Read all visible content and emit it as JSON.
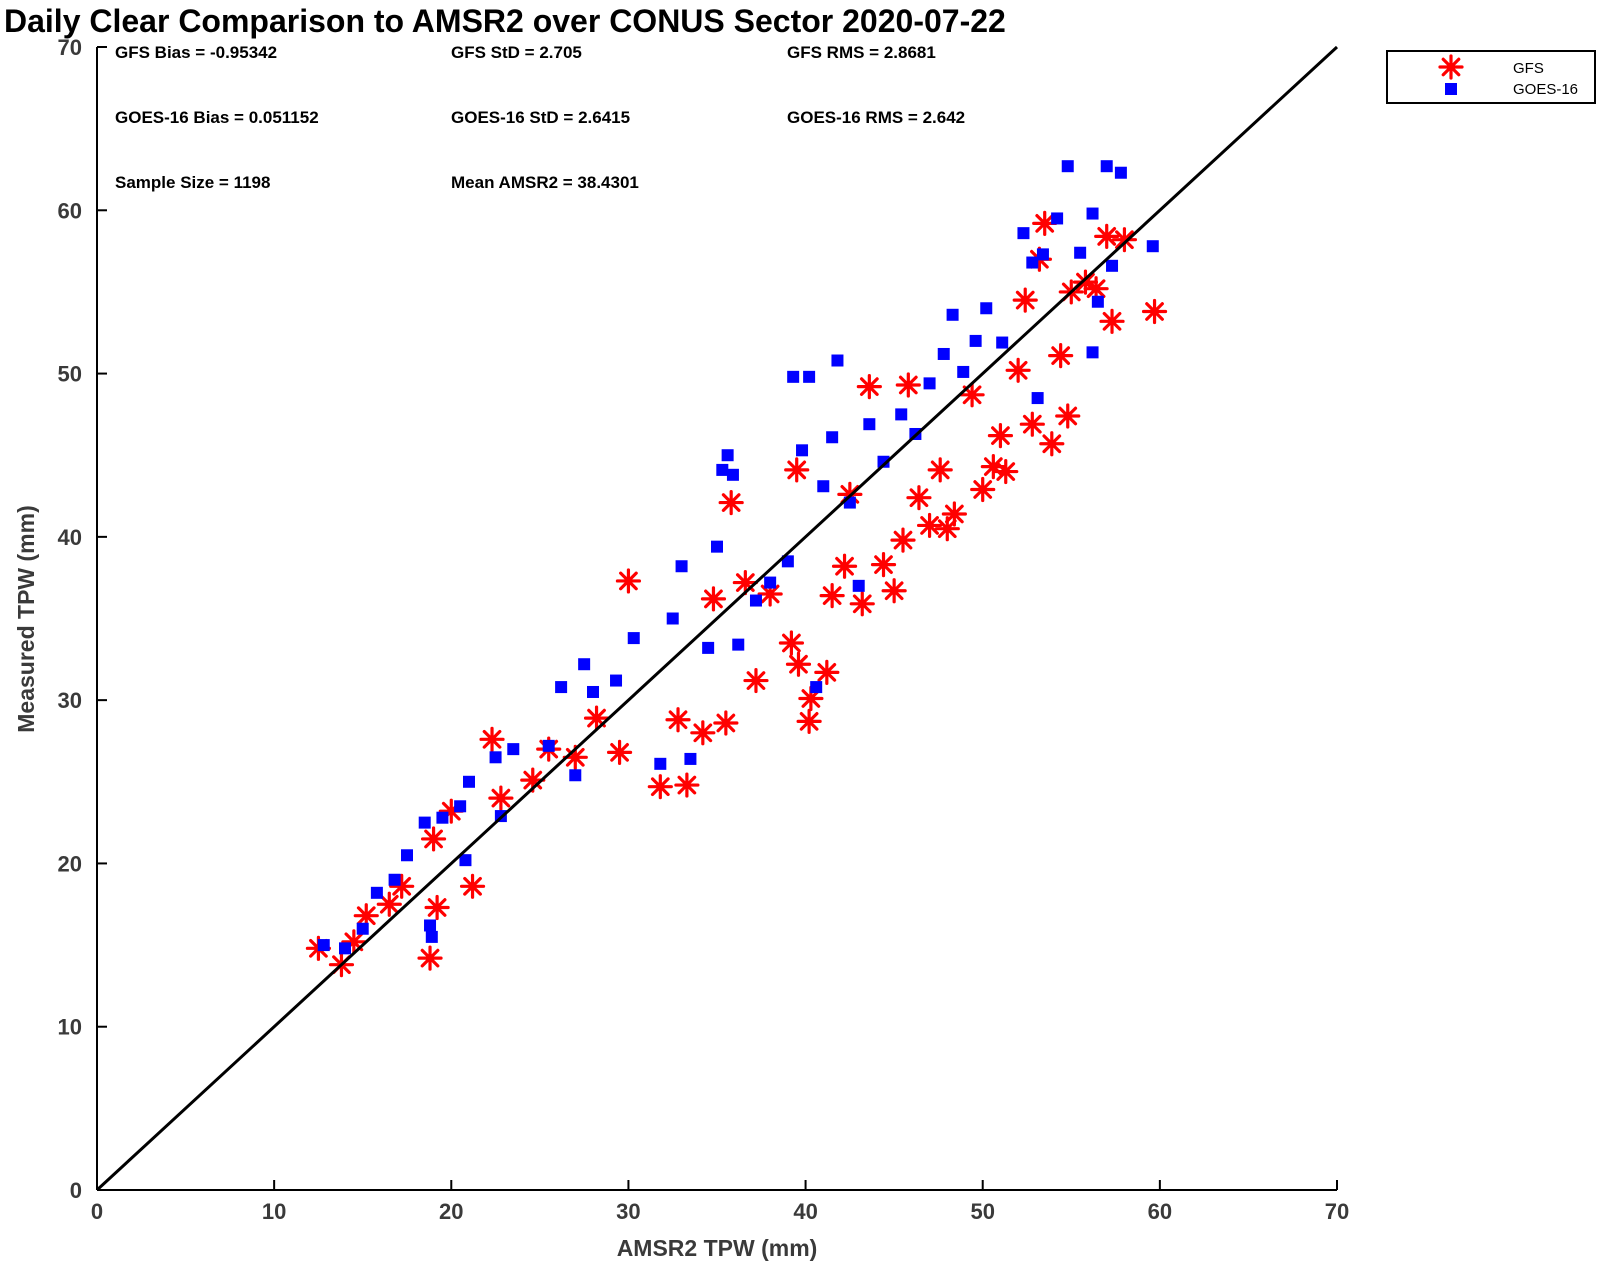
{
  "chart_data": {
    "type": "scatter",
    "title": "Daily Clear Comparison to AMSR2 over CONUS Sector 2020-07-22",
    "xlabel": "AMSR2 TPW (mm)",
    "ylabel": "Measured TPW (mm)",
    "xlim": [
      0,
      70
    ],
    "ylim": [
      0,
      70
    ],
    "xticks": [
      "0",
      "10",
      "20",
      "30",
      "40",
      "50",
      "60",
      "70"
    ],
    "yticks": [
      "0",
      "10",
      "20",
      "30",
      "40",
      "50",
      "60",
      "70"
    ],
    "grid": false,
    "legend_position": "outside-top-right",
    "reference_line": {
      "label": "1:1",
      "from": [
        0,
        0
      ],
      "to": [
        70,
        70
      ],
      "color": "#000000"
    },
    "series": [
      {
        "name": "GFS",
        "marker": "asterisk",
        "color": "#ff0000",
        "points": [
          [
            12.5,
            14.8
          ],
          [
            13.8,
            13.8
          ],
          [
            14.5,
            15.2
          ],
          [
            15.2,
            16.8
          ],
          [
            16.5,
            17.5
          ],
          [
            17.2,
            18.6
          ],
          [
            18.8,
            14.2
          ],
          [
            19.2,
            17.3
          ],
          [
            19.0,
            21.5
          ],
          [
            20.0,
            23.2
          ],
          [
            21.2,
            18.6
          ],
          [
            22.3,
            27.6
          ],
          [
            22.8,
            24.0
          ],
          [
            24.6,
            25.1
          ],
          [
            25.5,
            27.0
          ],
          [
            27.0,
            26.5
          ],
          [
            28.2,
            28.9
          ],
          [
            29.5,
            26.8
          ],
          [
            30.0,
            37.3
          ],
          [
            31.8,
            24.7
          ],
          [
            33.3,
            24.8
          ],
          [
            32.8,
            28.8
          ],
          [
            34.2,
            28.0
          ],
          [
            34.8,
            36.2
          ],
          [
            35.5,
            28.6
          ],
          [
            35.8,
            42.1
          ],
          [
            36.6,
            37.2
          ],
          [
            37.2,
            31.2
          ],
          [
            38.0,
            36.5
          ],
          [
            39.2,
            33.5
          ],
          [
            39.5,
            44.1
          ],
          [
            39.6,
            32.2
          ],
          [
            40.2,
            28.7
          ],
          [
            40.3,
            30.1
          ],
          [
            41.2,
            31.7
          ],
          [
            41.5,
            36.4
          ],
          [
            42.2,
            38.2
          ],
          [
            42.5,
            42.6
          ],
          [
            43.2,
            35.9
          ],
          [
            43.6,
            49.2
          ],
          [
            44.4,
            38.3
          ],
          [
            45.0,
            36.7
          ],
          [
            45.5,
            39.8
          ],
          [
            45.8,
            49.3
          ],
          [
            46.4,
            42.4
          ],
          [
            47.0,
            40.7
          ],
          [
            47.6,
            44.1
          ],
          [
            48.0,
            40.5
          ],
          [
            48.4,
            41.4
          ],
          [
            49.4,
            48.7
          ],
          [
            50.0,
            42.9
          ],
          [
            50.6,
            44.3
          ],
          [
            51.0,
            46.2
          ],
          [
            51.3,
            44.0
          ],
          [
            52.0,
            50.2
          ],
          [
            52.4,
            54.5
          ],
          [
            52.8,
            46.9
          ],
          [
            53.2,
            57.0
          ],
          [
            53.5,
            59.2
          ],
          [
            53.9,
            45.7
          ],
          [
            54.4,
            51.1
          ],
          [
            54.8,
            47.4
          ],
          [
            55.0,
            55.0
          ],
          [
            55.8,
            55.6
          ],
          [
            56.4,
            55.2
          ],
          [
            57.0,
            58.4
          ],
          [
            57.3,
            53.2
          ],
          [
            58.0,
            58.2
          ],
          [
            59.7,
            53.8
          ]
        ]
      },
      {
        "name": "GOES-16",
        "marker": "square",
        "color": "#0000ff",
        "points": [
          [
            12.8,
            15.0
          ],
          [
            14.0,
            14.8
          ],
          [
            15.0,
            16.0
          ],
          [
            15.8,
            18.2
          ],
          [
            16.8,
            19.0
          ],
          [
            17.5,
            20.5
          ],
          [
            18.5,
            22.5
          ],
          [
            18.8,
            16.2
          ],
          [
            18.9,
            15.5
          ],
          [
            19.5,
            22.8
          ],
          [
            20.5,
            23.5
          ],
          [
            20.8,
            20.2
          ],
          [
            21.0,
            25.0
          ],
          [
            22.5,
            26.5
          ],
          [
            22.8,
            22.9
          ],
          [
            23.5,
            27.0
          ],
          [
            25.5,
            27.2
          ],
          [
            26.2,
            30.8
          ],
          [
            27.0,
            25.4
          ],
          [
            27.5,
            32.2
          ],
          [
            28.0,
            30.5
          ],
          [
            29.3,
            31.2
          ],
          [
            30.3,
            33.8
          ],
          [
            31.8,
            26.1
          ],
          [
            32.5,
            35.0
          ],
          [
            33.5,
            26.4
          ],
          [
            33.0,
            38.2
          ],
          [
            34.5,
            33.2
          ],
          [
            35.0,
            39.4
          ],
          [
            35.3,
            44.1
          ],
          [
            35.6,
            45.0
          ],
          [
            35.9,
            43.8
          ],
          [
            36.2,
            33.4
          ],
          [
            37.2,
            36.1
          ],
          [
            38.0,
            37.2
          ],
          [
            39.0,
            38.5
          ],
          [
            39.3,
            49.8
          ],
          [
            39.8,
            45.3
          ],
          [
            40.2,
            49.8
          ],
          [
            40.6,
            30.8
          ],
          [
            41.0,
            43.1
          ],
          [
            41.5,
            46.1
          ],
          [
            41.8,
            50.8
          ],
          [
            42.5,
            42.1
          ],
          [
            43.0,
            37.0
          ],
          [
            43.6,
            46.9
          ],
          [
            44.4,
            44.6
          ],
          [
            45.4,
            47.5
          ],
          [
            46.2,
            46.3
          ],
          [
            47.0,
            49.4
          ],
          [
            47.8,
            51.2
          ],
          [
            48.3,
            53.6
          ],
          [
            48.9,
            50.1
          ],
          [
            49.6,
            52.0
          ],
          [
            50.2,
            54.0
          ],
          [
            51.1,
            51.9
          ],
          [
            52.3,
            58.6
          ],
          [
            52.8,
            56.8
          ],
          [
            53.4,
            57.3
          ],
          [
            54.2,
            59.5
          ],
          [
            54.8,
            62.7
          ],
          [
            55.5,
            57.4
          ],
          [
            56.2,
            59.8
          ],
          [
            57.0,
            62.7
          ],
          [
            57.8,
            62.3
          ],
          [
            57.3,
            56.6
          ],
          [
            56.5,
            54.4
          ],
          [
            56.2,
            51.3
          ],
          [
            59.6,
            57.8
          ],
          [
            53.1,
            48.5
          ]
        ]
      }
    ],
    "stats": {
      "gfs_bias": "GFS Bias = -0.95342",
      "gfs_std": "GFS StD = 2.705",
      "gfs_rms": "GFS RMS = 2.8681",
      "goes_bias": "GOES-16 Bias = 0.051152",
      "goes_std": "GOES-16 StD = 2.6415",
      "goes_rms": "GOES-16 RMS = 2.642",
      "sample_size": "Sample Size = 1198",
      "mean_amsr2": "Mean AMSR2 = 38.4301"
    }
  }
}
